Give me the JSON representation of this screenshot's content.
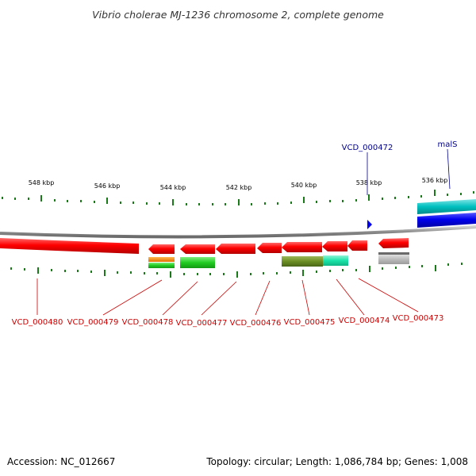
{
  "title": "Vibrio cholerae MJ-1236 chromosome 2, complete genome",
  "footer": {
    "accession": "Accession: NC_012667",
    "summary": "Topology: circular; Length: 1,086,784 bp; Genes: 1,008"
  },
  "scale_ticks": [
    {
      "label": "548 kbp"
    },
    {
      "label": "546 kbp"
    },
    {
      "label": "544 kbp"
    },
    {
      "label": "542 kbp"
    },
    {
      "label": "540 kbp"
    },
    {
      "label": "538 kbp"
    },
    {
      "label": "536 kbp"
    }
  ],
  "genes_below": [
    {
      "label": "VCD_000480"
    },
    {
      "label": "VCD_000479"
    },
    {
      "label": "VCD_000478"
    },
    {
      "label": "VCD_000477"
    },
    {
      "label": "VCD_000476"
    },
    {
      "label": "VCD_000475"
    },
    {
      "label": "VCD_000474"
    },
    {
      "label": "VCD_000473"
    }
  ],
  "genes_above": [
    {
      "label": "VCD_000472"
    },
    {
      "label": "malS"
    }
  ],
  "colors": {
    "reverse_cds": "#ff0000",
    "forward_cds": "#0000ee",
    "forward_feature": "#00bfbf",
    "backbone": "#8c8c8c",
    "tick": "#1a7a1a",
    "label_red": "#cc0000",
    "label_blue": "#00008b",
    "orange": "#ff8c00",
    "green": "#22cc22",
    "olive": "#6b8e23",
    "teal": "#19e3a8",
    "gray": "#bdbdbd"
  }
}
